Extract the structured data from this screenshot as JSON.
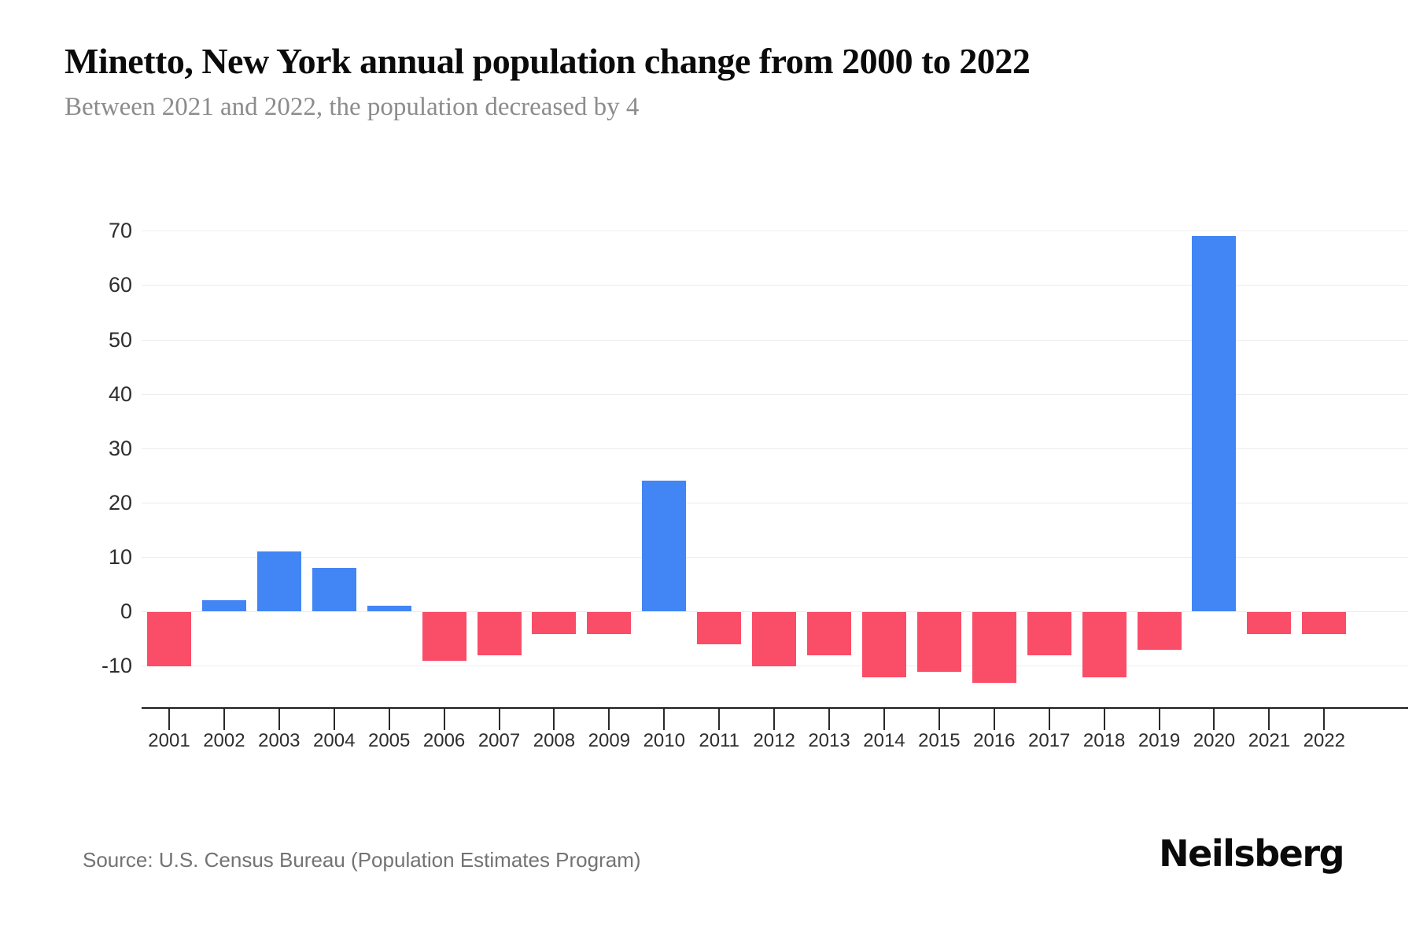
{
  "page": {
    "title": "Minetto, New York annual population change from 2000 to 2022",
    "subtitle": "Between 2021 and 2022, the population decreased by 4",
    "source": "Source: U.S. Census Bureau (Population Estimates Program)",
    "brand": "Neilsberg"
  },
  "colors": {
    "positive_bar": "#4285f4",
    "negative_bar": "#fa4d68",
    "gridline": "#ededed",
    "axis_line": "#1f1f1f",
    "axis_label": "#2e2e2e",
    "title_text": "#0b0b0b",
    "subtitle_text": "#8c8c8c",
    "source_text": "#737373"
  },
  "chart_data": {
    "type": "bar",
    "title": "Minetto, New York annual population change from 2000 to 2022",
    "subtitle": "Between 2021 and 2022, the population decreased by 4",
    "xlabel": "",
    "ylabel": "",
    "categories": [
      "2001",
      "2002",
      "2003",
      "2004",
      "2005",
      "2006",
      "2007",
      "2008",
      "2009",
      "2010",
      "2011",
      "2012",
      "2013",
      "2014",
      "2015",
      "2016",
      "2017",
      "2018",
      "2019",
      "2020",
      "2021",
      "2022"
    ],
    "values": [
      -10,
      2,
      11,
      8,
      1,
      -9,
      -8,
      -4,
      -4,
      24,
      -6,
      -10,
      -8,
      -12,
      -11,
      -13,
      -8,
      -12,
      -7,
      69,
      -4,
      -4
    ],
    "yticks": [
      70,
      60,
      50,
      40,
      30,
      20,
      10,
      0,
      -10
    ],
    "ylim": [
      -17,
      75
    ],
    "grid": true,
    "legend": false,
    "positive_color": "#4285f4",
    "negative_color": "#fa4d68"
  }
}
